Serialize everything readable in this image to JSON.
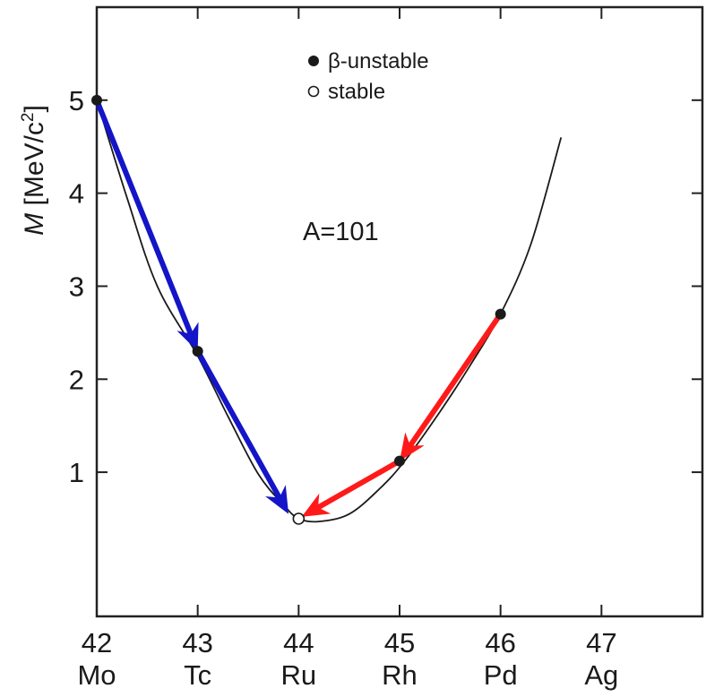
{
  "chart_data": {
    "type": "line",
    "ylabel_italic": "M",
    "ylabel_rest": " [MeV/c",
    "ylabel_sup": "2",
    "ylabel_close": "]",
    "xlim": [
      42,
      48
    ],
    "ylim": [
      -0.55,
      6.0
    ],
    "y_ticks": [
      1,
      2,
      3,
      4,
      5
    ],
    "y_tick_labels": [
      "1",
      "2",
      "3",
      "4",
      "5"
    ],
    "x_ticks": [
      42,
      43,
      44,
      45,
      46,
      47
    ],
    "x_tick_labels": [
      "42",
      "43",
      "44",
      "45",
      "46",
      "47"
    ],
    "x_element_labels": [
      "Mo",
      "Tc",
      "Ru",
      "Rh",
      "Pd",
      "Ag"
    ],
    "annotation": "A=101",
    "legend": [
      {
        "marker": "filled",
        "label": "β-unstable"
      },
      {
        "marker": "open",
        "label": "stable"
      }
    ],
    "curve": {
      "x": [
        42.0,
        42.3,
        42.6,
        43.0,
        43.3,
        43.6,
        43.85,
        44.0,
        44.2,
        44.5,
        44.8,
        45.05,
        45.4,
        45.7,
        46.0,
        46.3,
        46.6
      ],
      "y": [
        5.0,
        3.95,
        3.0,
        2.25,
        1.6,
        0.98,
        0.65,
        0.5,
        0.47,
        0.55,
        0.82,
        1.12,
        1.65,
        2.15,
        2.7,
        3.45,
        4.6
      ]
    },
    "points": [
      {
        "x": 42,
        "y": 5.0,
        "label": "Mo",
        "stable": false
      },
      {
        "x": 43,
        "y": 2.3,
        "label": "Tc",
        "stable": false
      },
      {
        "x": 44,
        "y": 0.5,
        "label": "Ru",
        "stable": true
      },
      {
        "x": 45,
        "y": 1.12,
        "label": "Rh",
        "stable": false
      },
      {
        "x": 46,
        "y": 2.7,
        "label": "Pd",
        "stable": false
      }
    ],
    "arrows": [
      {
        "color": "#1414c8",
        "from": [
          42.0,
          5.0
        ],
        "to": [
          43.0,
          2.3
        ]
      },
      {
        "color": "#1414c8",
        "from": [
          43.0,
          2.3
        ],
        "to": [
          43.9,
          0.55
        ]
      },
      {
        "color": "#ff1a1a",
        "from": [
          46.0,
          2.7
        ],
        "to": [
          45.0,
          1.12
        ]
      },
      {
        "color": "#ff1a1a",
        "from": [
          45.0,
          1.12
        ],
        "to": [
          44.03,
          0.52
        ]
      }
    ]
  }
}
